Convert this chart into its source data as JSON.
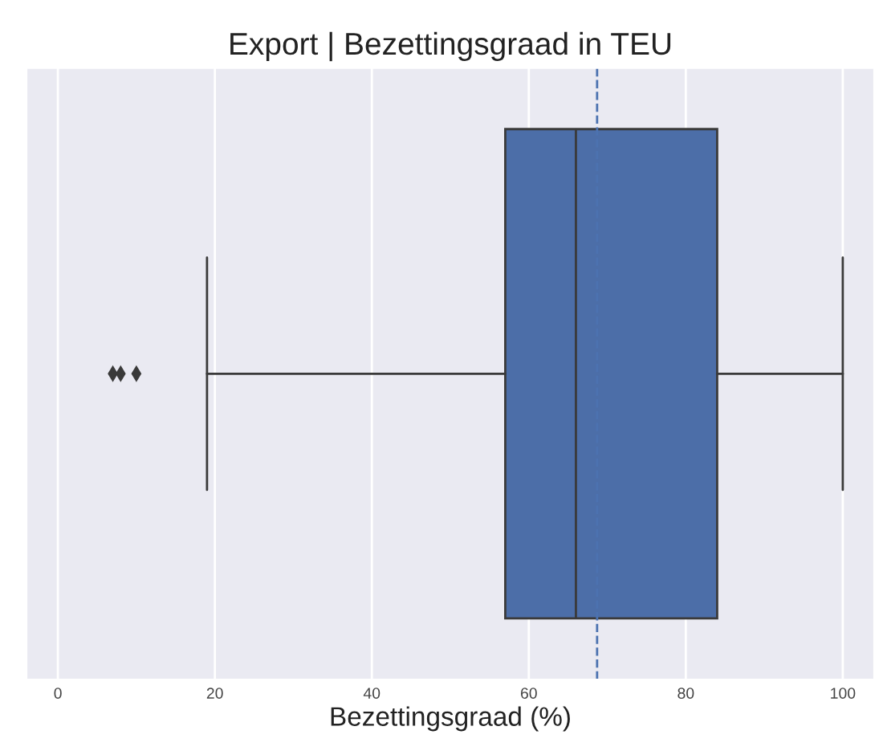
{
  "chart_data": {
    "type": "box",
    "orientation": "horizontal",
    "title": "Export | Bezettingsgraad in TEU",
    "xlabel": "Bezettingsgraad (%)",
    "categories": [
      null
    ],
    "boxes": [
      {
        "low": 19,
        "q1": 57,
        "median": 66,
        "q3": 84,
        "high": 100,
        "outliers": [
          7,
          8,
          10
        ]
      }
    ],
    "color": "#4c6ea8",
    "xlim": [
      -4,
      104
    ],
    "xticks": [
      0,
      20,
      40,
      60,
      80,
      100
    ],
    "grid": "x",
    "ref_lines": [
      {
        "axis": "x",
        "value": 68.7,
        "color": "#4c72b0",
        "line_style": "dashed"
      }
    ]
  }
}
